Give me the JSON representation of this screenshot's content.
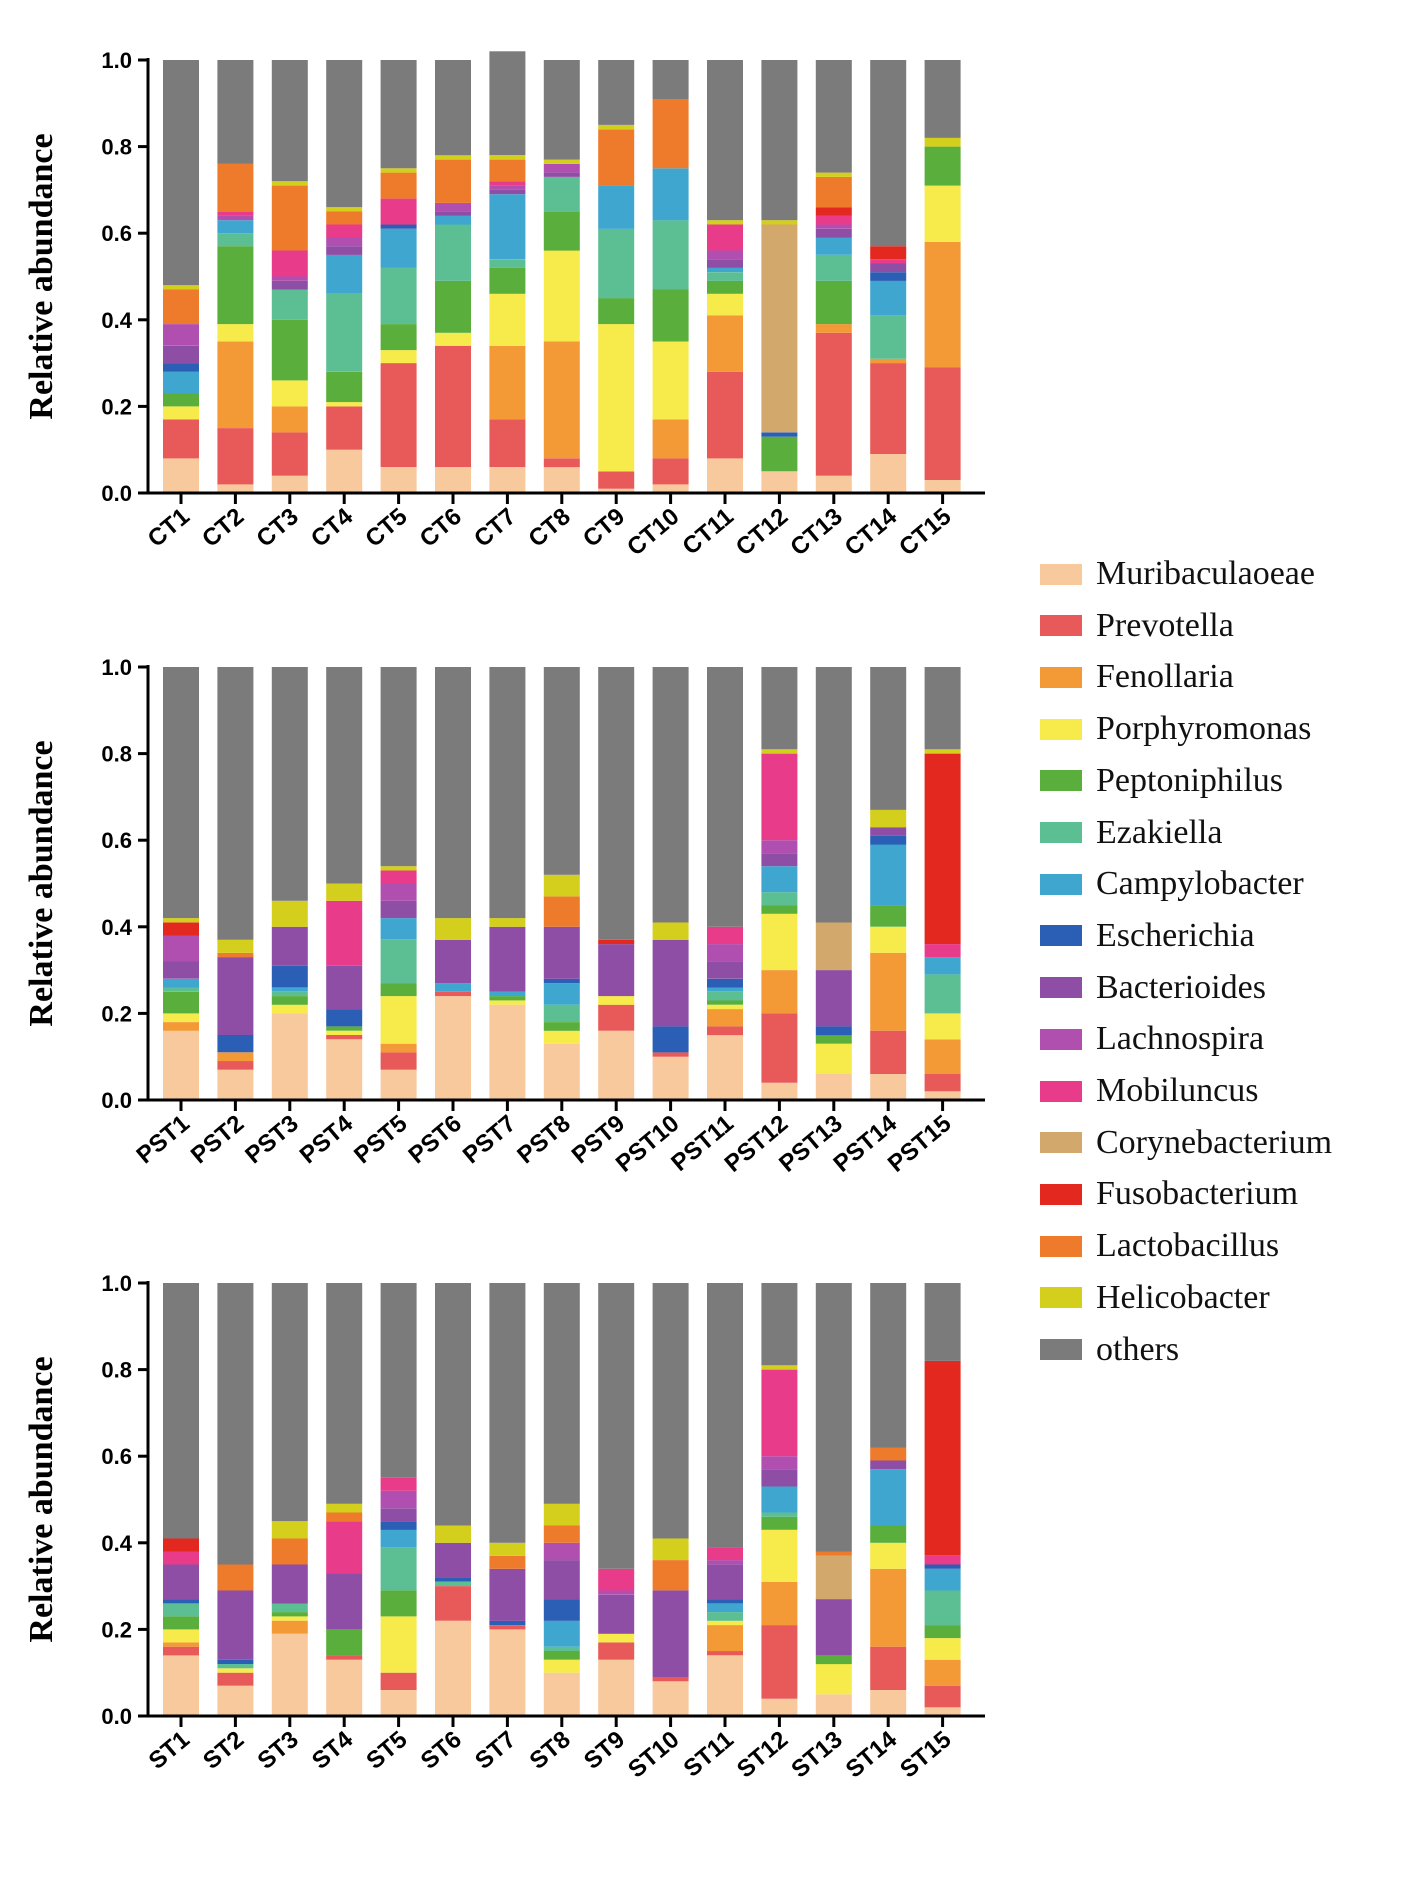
{
  "chart_data": [
    {
      "type": "bar",
      "stacked": true,
      "ylabel": "Relative abundance",
      "ylim": [
        0,
        1.0
      ],
      "yticks": [
        "0.0",
        "0.2",
        "0.4",
        "0.6",
        "0.8",
        "1.0"
      ],
      "categories": [
        "CT1",
        "CT2",
        "CT3",
        "CT4",
        "CT5",
        "CT6",
        "CT7",
        "CT8",
        "CT9",
        "CT10",
        "CT11",
        "CT12",
        "CT13",
        "CT14",
        "CT15"
      ],
      "series": [
        {
          "name": "Muribaculaoeae",
          "values": [
            0.08,
            0.02,
            0.04,
            0.1,
            0.06,
            0.06,
            0.06,
            0.06,
            0.01,
            0.02,
            0.08,
            0.05,
            0.04,
            0.09,
            0.03
          ]
        },
        {
          "name": "Prevotella",
          "values": [
            0.09,
            0.13,
            0.1,
            0.1,
            0.24,
            0.28,
            0.11,
            0.02,
            0.04,
            0.06,
            0.2,
            0.0,
            0.33,
            0.21,
            0.26
          ]
        },
        {
          "name": "Fenollaria",
          "values": [
            0.0,
            0.2,
            0.06,
            0.0,
            0.0,
            0.0,
            0.17,
            0.27,
            0.0,
            0.09,
            0.13,
            0.0,
            0.02,
            0.01,
            0.29
          ]
        },
        {
          "name": "Porphyromonas",
          "values": [
            0.03,
            0.04,
            0.06,
            0.01,
            0.03,
            0.03,
            0.12,
            0.21,
            0.34,
            0.18,
            0.05,
            0.0,
            0.0,
            0.0,
            0.13
          ]
        },
        {
          "name": "Peptoniphilus",
          "values": [
            0.03,
            0.18,
            0.14,
            0.07,
            0.06,
            0.12,
            0.06,
            0.09,
            0.06,
            0.12,
            0.03,
            0.08,
            0.1,
            0.0,
            0.09
          ]
        },
        {
          "name": "Ezakiella",
          "values": [
            0.0,
            0.03,
            0.07,
            0.18,
            0.13,
            0.13,
            0.02,
            0.08,
            0.16,
            0.16,
            0.02,
            0.0,
            0.06,
            0.1,
            0.0
          ]
        },
        {
          "name": "Campylobacter",
          "values": [
            0.05,
            0.03,
            0.0,
            0.09,
            0.09,
            0.02,
            0.15,
            0.0,
            0.1,
            0.12,
            0.01,
            0.0,
            0.04,
            0.08,
            0.0
          ]
        },
        {
          "name": "Escherichia",
          "values": [
            0.02,
            0.0,
            0.0,
            0.0,
            0.01,
            0.0,
            0.0,
            0.0,
            0.0,
            0.0,
            0.0,
            0.01,
            0.0,
            0.02,
            0.0
          ]
        },
        {
          "name": "Bacterioides",
          "values": [
            0.04,
            0.0,
            0.02,
            0.02,
            0.0,
            0.01,
            0.01,
            0.01,
            0.0,
            0.0,
            0.02,
            0.0,
            0.02,
            0.02,
            0.0
          ]
        },
        {
          "name": "Lachnospira",
          "values": [
            0.05,
            0.01,
            0.01,
            0.02,
            0.0,
            0.02,
            0.01,
            0.02,
            0.0,
            0.0,
            0.02,
            0.0,
            0.01,
            0.0,
            0.0
          ]
        },
        {
          "name": "Mobiluncus",
          "values": [
            0.0,
            0.01,
            0.06,
            0.03,
            0.06,
            0.0,
            0.01,
            0.0,
            0.0,
            0.0,
            0.06,
            0.0,
            0.02,
            0.01,
            0.0
          ]
        },
        {
          "name": "Corynebacterium",
          "values": [
            0.0,
            0.0,
            0.0,
            0.0,
            0.0,
            0.0,
            0.0,
            0.0,
            0.0,
            0.0,
            0.0,
            0.48,
            0.0,
            0.0,
            0.0
          ]
        },
        {
          "name": "Fusobacterium",
          "values": [
            0.0,
            0.0,
            0.0,
            0.0,
            0.0,
            0.0,
            0.0,
            0.0,
            0.0,
            0.0,
            0.0,
            0.0,
            0.02,
            0.03,
            0.0
          ]
        },
        {
          "name": "Lactobacillus",
          "values": [
            0.08,
            0.11,
            0.15,
            0.03,
            0.06,
            0.1,
            0.05,
            0.0,
            0.13,
            0.16,
            0.0,
            0.0,
            0.07,
            0.0,
            0.0
          ]
        },
        {
          "name": "Helicobacter",
          "values": [
            0.01,
            0.0,
            0.01,
            0.01,
            0.01,
            0.01,
            0.01,
            0.01,
            0.01,
            0.0,
            0.01,
            0.01,
            0.01,
            0.0,
            0.02
          ]
        },
        {
          "name": "others",
          "values": [
            0.52,
            0.24,
            0.28,
            0.34,
            0.25,
            0.22,
            0.24,
            0.23,
            0.15,
            0.09,
            0.37,
            0.37,
            0.26,
            0.43,
            0.18
          ]
        }
      ]
    },
    {
      "type": "bar",
      "stacked": true,
      "ylabel": "Relative abundance",
      "ylim": [
        0,
        1.0
      ],
      "yticks": [
        "0.0",
        "0.2",
        "0.4",
        "0.6",
        "0.8",
        "1.0"
      ],
      "categories": [
        "PST1",
        "PST2",
        "PST3",
        "PST4",
        "PST5",
        "PST6",
        "PST7",
        "PST8",
        "PST9",
        "PST10",
        "PST11",
        "PST12",
        "PST13",
        "PST14",
        "PST15"
      ],
      "series": [
        {
          "name": "Muribaculaoeae",
          "values": [
            0.16,
            0.07,
            0.2,
            0.14,
            0.07,
            0.24,
            0.22,
            0.13,
            0.16,
            0.1,
            0.15,
            0.04,
            0.06,
            0.06,
            0.02
          ]
        },
        {
          "name": "Prevotella",
          "values": [
            0.0,
            0.02,
            0.0,
            0.01,
            0.04,
            0.01,
            0.0,
            0.0,
            0.06,
            0.01,
            0.02,
            0.16,
            0.0,
            0.1,
            0.04
          ]
        },
        {
          "name": "Fenollaria",
          "values": [
            0.02,
            0.02,
            0.0,
            0.0,
            0.02,
            0.0,
            0.0,
            0.0,
            0.0,
            0.0,
            0.04,
            0.1,
            0.0,
            0.18,
            0.08
          ]
        },
        {
          "name": "Porphyromonas",
          "values": [
            0.02,
            0.0,
            0.02,
            0.01,
            0.11,
            0.0,
            0.01,
            0.03,
            0.02,
            0.0,
            0.01,
            0.13,
            0.07,
            0.06,
            0.06
          ]
        },
        {
          "name": "Peptoniphilus",
          "values": [
            0.05,
            0.0,
            0.02,
            0.01,
            0.03,
            0.0,
            0.01,
            0.02,
            0.0,
            0.0,
            0.01,
            0.02,
            0.02,
            0.05,
            0.0
          ]
        },
        {
          "name": "Ezakiella",
          "values": [
            0.01,
            0.0,
            0.01,
            0.0,
            0.1,
            0.0,
            0.0,
            0.04,
            0.0,
            0.0,
            0.02,
            0.03,
            0.0,
            0.0,
            0.09
          ]
        },
        {
          "name": "Campylobacter",
          "values": [
            0.02,
            0.0,
            0.01,
            0.0,
            0.05,
            0.02,
            0.01,
            0.05,
            0.0,
            0.0,
            0.01,
            0.06,
            0.0,
            0.14,
            0.04
          ]
        },
        {
          "name": "Escherichia",
          "values": [
            0.0,
            0.04,
            0.05,
            0.04,
            0.0,
            0.0,
            0.0,
            0.01,
            0.0,
            0.06,
            0.02,
            0.0,
            0.02,
            0.02,
            0.0
          ]
        },
        {
          "name": "Bacterioides",
          "values": [
            0.04,
            0.18,
            0.09,
            0.1,
            0.04,
            0.1,
            0.15,
            0.12,
            0.12,
            0.2,
            0.04,
            0.03,
            0.13,
            0.02,
            0.0
          ]
        },
        {
          "name": "Lachnospira",
          "values": [
            0.06,
            0.0,
            0.0,
            0.0,
            0.04,
            0.0,
            0.0,
            0.0,
            0.0,
            0.0,
            0.04,
            0.03,
            0.0,
            0.0,
            0.0
          ]
        },
        {
          "name": "Mobiluncus",
          "values": [
            0.0,
            0.0,
            0.0,
            0.15,
            0.03,
            0.0,
            0.0,
            0.0,
            0.0,
            0.0,
            0.04,
            0.2,
            0.0,
            0.0,
            0.03
          ]
        },
        {
          "name": "Corynebacterium",
          "values": [
            0.0,
            0.0,
            0.0,
            0.0,
            0.0,
            0.0,
            0.0,
            0.0,
            0.0,
            0.0,
            0.0,
            0.0,
            0.11,
            0.0,
            0.0
          ]
        },
        {
          "name": "Fusobacterium",
          "values": [
            0.03,
            0.0,
            0.0,
            0.0,
            0.0,
            0.0,
            0.0,
            0.0,
            0.01,
            0.0,
            0.0,
            0.0,
            0.0,
            0.0,
            0.44
          ]
        },
        {
          "name": "Lactobacillus",
          "values": [
            0.0,
            0.01,
            0.0,
            0.0,
            0.0,
            0.0,
            0.0,
            0.07,
            0.0,
            0.0,
            0.0,
            0.0,
            0.0,
            0.0,
            0.0
          ]
        },
        {
          "name": "Helicobacter",
          "values": [
            0.01,
            0.03,
            0.06,
            0.04,
            0.01,
            0.05,
            0.02,
            0.05,
            0.0,
            0.04,
            0.0,
            0.01,
            0.0,
            0.04,
            0.01
          ]
        },
        {
          "name": "others",
          "values": [
            0.58,
            0.63,
            0.54,
            0.5,
            0.46,
            0.58,
            0.58,
            0.48,
            0.63,
            0.59,
            0.6,
            0.19,
            0.59,
            0.33,
            0.19
          ]
        }
      ]
    },
    {
      "type": "bar",
      "stacked": true,
      "ylabel": "Relative abundance",
      "ylim": [
        0,
        1.0
      ],
      "yticks": [
        "0.0",
        "0.2",
        "0.4",
        "0.6",
        "0.8",
        "1.0"
      ],
      "categories": [
        "ST1",
        "ST2",
        "ST3",
        "ST4",
        "ST5",
        "ST6",
        "ST7",
        "ST8",
        "ST9",
        "ST10",
        "ST11",
        "ST12",
        "ST13",
        "ST14",
        "ST15"
      ],
      "series": [
        {
          "name": "Muribaculaoeae",
          "values": [
            0.14,
            0.07,
            0.19,
            0.13,
            0.06,
            0.22,
            0.2,
            0.1,
            0.13,
            0.08,
            0.14,
            0.04,
            0.05,
            0.06,
            0.02
          ]
        },
        {
          "name": "Prevotella",
          "values": [
            0.02,
            0.03,
            0.0,
            0.01,
            0.04,
            0.08,
            0.01,
            0.0,
            0.04,
            0.01,
            0.01,
            0.17,
            0.0,
            0.1,
            0.05
          ]
        },
        {
          "name": "Fenollaria",
          "values": [
            0.01,
            0.0,
            0.03,
            0.0,
            0.0,
            0.0,
            0.0,
            0.0,
            0.0,
            0.0,
            0.06,
            0.1,
            0.0,
            0.18,
            0.06
          ]
        },
        {
          "name": "Porphyromonas",
          "values": [
            0.03,
            0.01,
            0.01,
            0.0,
            0.13,
            0.0,
            0.0,
            0.03,
            0.02,
            0.0,
            0.01,
            0.12,
            0.07,
            0.06,
            0.05
          ]
        },
        {
          "name": "Peptoniphilus",
          "values": [
            0.03,
            0.0,
            0.01,
            0.06,
            0.06,
            0.0,
            0.0,
            0.02,
            0.0,
            0.0,
            0.0,
            0.03,
            0.02,
            0.04,
            0.03
          ]
        },
        {
          "name": "Ezakiella",
          "values": [
            0.03,
            0.01,
            0.02,
            0.0,
            0.1,
            0.01,
            0.0,
            0.01,
            0.0,
            0.0,
            0.02,
            0.01,
            0.0,
            0.0,
            0.08
          ]
        },
        {
          "name": "Campylobacter",
          "values": [
            0.0,
            0.0,
            0.0,
            0.0,
            0.04,
            0.0,
            0.0,
            0.06,
            0.0,
            0.0,
            0.02,
            0.06,
            0.0,
            0.13,
            0.05
          ]
        },
        {
          "name": "Escherichia",
          "values": [
            0.01,
            0.01,
            0.0,
            0.0,
            0.02,
            0.01,
            0.01,
            0.05,
            0.0,
            0.0,
            0.01,
            0.0,
            0.0,
            0.0,
            0.01
          ]
        },
        {
          "name": "Bacterioides",
          "values": [
            0.08,
            0.16,
            0.09,
            0.13,
            0.03,
            0.08,
            0.12,
            0.09,
            0.09,
            0.2,
            0.08,
            0.04,
            0.13,
            0.02,
            0.0
          ]
        },
        {
          "name": "Lachnospira",
          "values": [
            0.0,
            0.0,
            0.0,
            0.0,
            0.04,
            0.0,
            0.0,
            0.04,
            0.01,
            0.0,
            0.01,
            0.03,
            0.0,
            0.0,
            0.0
          ]
        },
        {
          "name": "Mobiluncus",
          "values": [
            0.03,
            0.0,
            0.0,
            0.12,
            0.03,
            0.0,
            0.0,
            0.0,
            0.05,
            0.0,
            0.03,
            0.2,
            0.0,
            0.0,
            0.02
          ]
        },
        {
          "name": "Corynebacterium",
          "values": [
            0.0,
            0.0,
            0.0,
            0.0,
            0.0,
            0.0,
            0.0,
            0.0,
            0.0,
            0.0,
            0.0,
            0.0,
            0.1,
            0.0,
            0.0
          ]
        },
        {
          "name": "Fusobacterium",
          "values": [
            0.03,
            0.0,
            0.0,
            0.0,
            0.0,
            0.0,
            0.0,
            0.0,
            0.0,
            0.0,
            0.0,
            0.0,
            0.0,
            0.0,
            0.45
          ]
        },
        {
          "name": "Lactobacillus",
          "values": [
            0.0,
            0.06,
            0.06,
            0.02,
            0.0,
            0.0,
            0.03,
            0.04,
            0.0,
            0.07,
            0.0,
            0.0,
            0.01,
            0.03,
            0.0
          ]
        },
        {
          "name": "Helicobacter",
          "values": [
            0.0,
            0.0,
            0.04,
            0.02,
            0.0,
            0.04,
            0.03,
            0.05,
            0.0,
            0.05,
            0.0,
            0.01,
            0.0,
            0.0,
            0.0
          ]
        },
        {
          "name": "others",
          "values": [
            0.59,
            0.65,
            0.55,
            0.51,
            0.45,
            0.56,
            0.6,
            0.51,
            0.66,
            0.59,
            0.61,
            0.19,
            0.62,
            0.38,
            0.18
          ]
        }
      ]
    }
  ],
  "legend": [
    {
      "label": "Muribaculaoeae",
      "color": "#f7c99d"
    },
    {
      "label": "Prevotella",
      "color": "#e8595a"
    },
    {
      "label": "Fenollaria",
      "color": "#f39a36"
    },
    {
      "label": "Porphyromonas",
      "color": "#f6eb4a"
    },
    {
      "label": "Peptoniphilus",
      "color": "#5aae3c"
    },
    {
      "label": "Ezakiella",
      "color": "#5cbf94"
    },
    {
      "label": "Campylobacter",
      "color": "#3fa7cf"
    },
    {
      "label": "Escherichia",
      "color": "#2b5fb5"
    },
    {
      "label": "Bacterioides",
      "color": "#8f4ea6"
    },
    {
      "label": "Lachnospira",
      "color": "#b14fb0"
    },
    {
      "label": "Mobiluncus",
      "color": "#e83c8b"
    },
    {
      "label": "Corynebacterium",
      "color": "#d2a86c"
    },
    {
      "label": "Fusobacterium",
      "color": "#e3281f"
    },
    {
      "label": "Lactobacillus",
      "color": "#ee7a2b"
    },
    {
      "label": "Helicobacter",
      "color": "#d4cf1c"
    },
    {
      "label": "others",
      "color": "#7b7b7b"
    }
  ]
}
